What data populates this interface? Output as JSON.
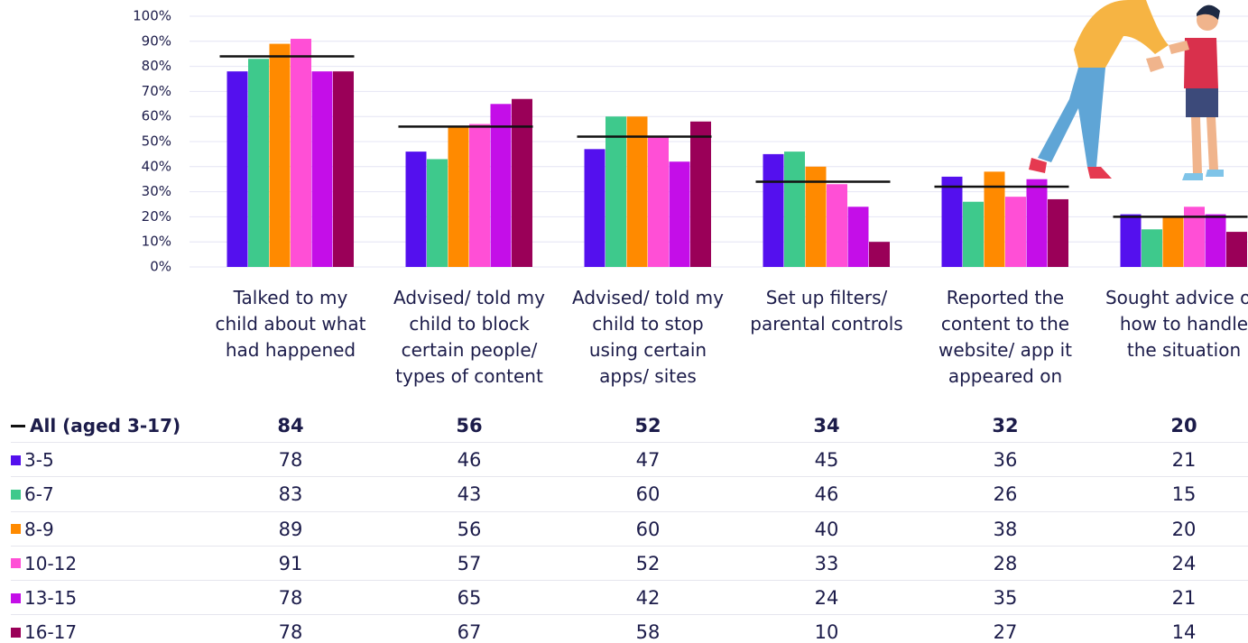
{
  "chart_data": {
    "type": "bar",
    "categories": [
      "Talked to my child about what had happened",
      "Advised/ told my child to block certain people/ types of content",
      "Advised/ told my child to stop using certain apps/ sites",
      "Set up filters/ parental controls",
      "Reported the content to the website/ app it appeared on",
      "Sought advice on how to handle the situation"
    ],
    "ylim": [
      0,
      100
    ],
    "yticks": [
      {
        "value": 0,
        "label": "0%"
      },
      {
        "value": 10,
        "label": "10%"
      },
      {
        "value": 20,
        "label": "20%"
      },
      {
        "value": 30,
        "label": "30%"
      },
      {
        "value": 40,
        "label": "40%"
      },
      {
        "value": 50,
        "label": "50%"
      },
      {
        "value": 60,
        "label": "60%"
      },
      {
        "value": 70,
        "label": "70%"
      },
      {
        "value": 80,
        "label": "80%"
      },
      {
        "value": 90,
        "label": "90%"
      },
      {
        "value": 100,
        "label": "100%"
      }
    ],
    "grid": true,
    "overall": {
      "name": "All (aged 3-17)",
      "color": "#111111",
      "values": [
        84,
        56,
        52,
        34,
        32,
        20
      ]
    },
    "series": [
      {
        "name": "3-5",
        "color": "#5410ee",
        "values": [
          78,
          46,
          47,
          45,
          36,
          21
        ]
      },
      {
        "name": "6-7",
        "color": "#3ec98c",
        "values": [
          83,
          43,
          60,
          46,
          26,
          15
        ]
      },
      {
        "name": "8-9",
        "color": "#ff8a00",
        "values": [
          89,
          56,
          60,
          40,
          38,
          20
        ]
      },
      {
        "name": "10-12",
        "color": "#ff4fd6",
        "values": [
          91,
          57,
          52,
          33,
          28,
          24
        ]
      },
      {
        "name": "13-15",
        "color": "#c40ee8",
        "values": [
          78,
          65,
          42,
          24,
          35,
          21
        ]
      },
      {
        "name": "16-17",
        "color": "#9a0058",
        "values": [
          78,
          67,
          58,
          10,
          27,
          14
        ]
      }
    ]
  }
}
